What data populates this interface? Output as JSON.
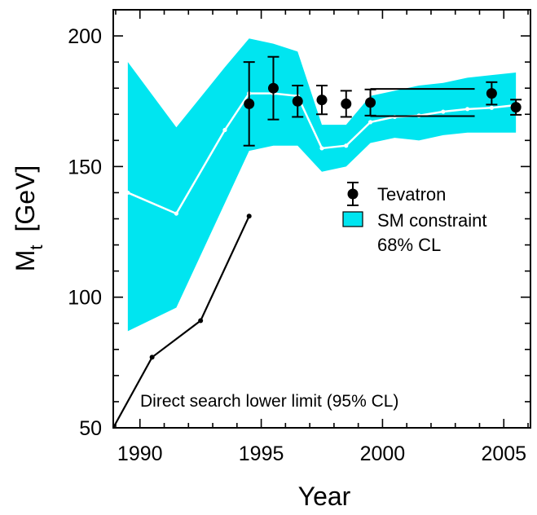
{
  "chart_data": {
    "type": "line",
    "xlabel": "Year",
    "ylabel_main": "M",
    "ylabel_sub": "t",
    "ylabel_unit": "[GeV]",
    "xlim": [
      1988.9,
      2006.1
    ],
    "ylim": [
      50,
      210
    ],
    "xticks": [
      1990,
      1995,
      2000,
      2005
    ],
    "yticks": [
      50,
      100,
      150,
      200
    ],
    "grid": false,
    "legend_position": "right-center",
    "colors": {
      "band": "#00e5f0",
      "sm_line": "#ffffff",
      "direct": "#000000",
      "tevatron": "#000000"
    },
    "series": [
      {
        "name": "Tevatron",
        "kind": "errorbar",
        "points": [
          {
            "x": 1994.5,
            "y": 174,
            "err": 16
          },
          {
            "x": 1995.5,
            "y": 180,
            "err": 12
          },
          {
            "x": 1996.5,
            "y": 175,
            "err": 6
          },
          {
            "x": 1997.5,
            "y": 175.5,
            "err": 5.5
          },
          {
            "x": 1998.5,
            "y": 174,
            "err": 5
          },
          {
            "x": 1999.5,
            "y": 174.5,
            "err": 5
          },
          {
            "x": 2004.5,
            "y": 178,
            "err": 4.3
          },
          {
            "x": 2005.5,
            "y": 172.7,
            "err": 2.9
          }
        ],
        "horizontal_bars": [
          {
            "x0": 1999.5,
            "x1": 2003.8,
            "y": 179.7
          },
          {
            "x0": 1999.5,
            "x1": 2003.8,
            "y": 169.3
          }
        ]
      },
      {
        "name": "SM constraint",
        "kind": "band",
        "x": [
          1989.5,
          1991.5,
          1993.5,
          1994.5,
          1995.5,
          1996.5,
          1997.5,
          1998.5,
          1999.5,
          2000.5,
          2001.5,
          2002.5,
          2003.5,
          2004.5,
          2005.5
        ],
        "central": [
          140,
          132,
          164,
          178,
          178,
          177,
          157,
          158,
          167,
          169,
          169.5,
          171,
          172,
          172.5,
          173.5
        ],
        "upper": [
          190,
          165,
          188,
          199,
          197,
          194,
          166,
          166,
          177,
          179,
          181,
          182,
          184,
          185,
          186
        ],
        "lower": [
          87,
          96,
          136,
          156,
          158,
          158,
          148,
          150,
          159,
          161,
          160,
          162,
          163,
          163,
          163
        ]
      },
      {
        "name": "Direct search lower limit (95% CL)",
        "kind": "line",
        "x": [
          1988.9,
          1990.5,
          1992.5,
          1994.5
        ],
        "y": [
          50,
          77,
          91,
          131
        ]
      }
    ],
    "legend": {
      "tevatron": "Tevatron",
      "band": "SM constraint",
      "band_cl": "68% CL"
    },
    "annotation": "Direct search lower limit (95% CL)"
  }
}
